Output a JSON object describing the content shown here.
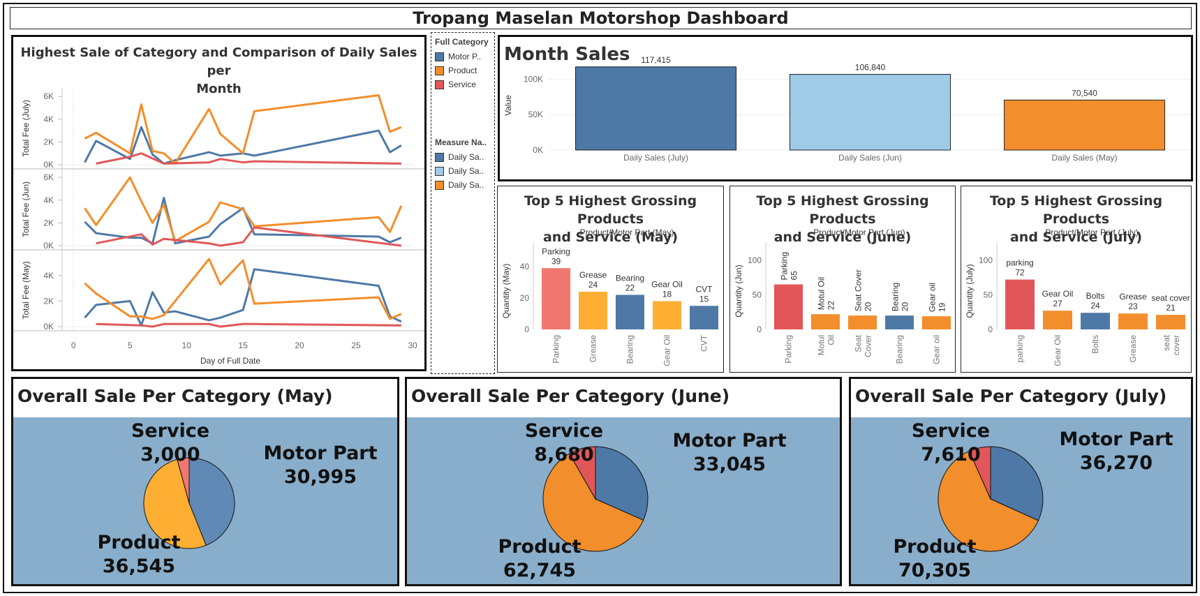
{
  "dashboard_title": "Tropang Maselan Motorshop Dashboard",
  "colors": {
    "motor_part": "#4e79a7",
    "product": "#f28e2b",
    "service": "#e15759",
    "jul": "#4e79a7",
    "jun": "#a0cbe8",
    "may": "#f28e2b",
    "pie_bg": "#89aecb",
    "pie_may_product": "#ffae34",
    "pie_may_motor": "#6189b5",
    "pie_may_service": "#f0776f"
  },
  "legend": {
    "category_title": "Full Category",
    "categories": [
      {
        "label": "Motor P..",
        "color": "#4e79a7"
      },
      {
        "label": "Product",
        "color": "#f28e2b"
      },
      {
        "label": "Service",
        "color": "#e15759"
      }
    ],
    "measure_title": "Measure Na..",
    "measures": [
      {
        "label": "Daily Sa..",
        "color": "#4e79a7"
      },
      {
        "label": "Daily Sa..",
        "color": "#a0cbe8"
      },
      {
        "label": "Daily Sa..",
        "color": "#f28e2b"
      }
    ]
  },
  "line_panel": {
    "title_line1": "Highest Sale of Category and Comparison of Daily Sales per",
    "title_line2": "Month",
    "xlabel": "Day of Full Date"
  },
  "month_panel": {
    "title": "Month Sales"
  },
  "top5_titles": {
    "may": [
      "Top 5 Highest Grossing Products",
      "and Service (May)"
    ],
    "jun": [
      "Top 5 Highest Grossing Products",
      "and Service (June)"
    ],
    "jul": [
      "Top 5 Highest Grossing Products",
      "and Service (July)"
    ]
  },
  "pie_titles": {
    "may": "Overall Sale Per Category (May)",
    "jun": "Overall Sale Per Category (June)",
    "jul": "Overall Sale Per Category (July)"
  },
  "chart_data": [
    {
      "type": "line",
      "title": "Highest Sale of Category and Comparison of Daily Sales per Month",
      "xlabel": "Day of Full Date",
      "xlim": [
        -1,
        30
      ],
      "xticks": [
        0,
        5,
        10,
        15,
        20,
        25,
        30
      ],
      "panes": [
        {
          "ylabel": "Total Fee (July)",
          "ylim": [
            0,
            6500
          ],
          "yticks": [
            0,
            2000,
            4000,
            6000
          ],
          "ytick_labels": [
            "0K",
            "2K",
            "4K",
            "6K"
          ],
          "series": [
            {
              "name": "Motor Part",
              "points": [
                [
                  1,
                  200
                ],
                [
                  2,
                  2100
                ],
                [
                  5,
                  500
                ],
                [
                  6,
                  3300
                ],
                [
                  7,
                  900
                ],
                [
                  8,
                  100
                ],
                [
                  9,
                  400
                ],
                [
                  12,
                  1100
                ],
                [
                  13,
                  800
                ],
                [
                  15,
                  1000
                ],
                [
                  16,
                  800
                ],
                [
                  27,
                  3000
                ],
                [
                  28,
                  1100
                ],
                [
                  29,
                  1700
                ]
              ]
            },
            {
              "name": "Product",
              "points": [
                [
                  1,
                  2300
                ],
                [
                  2,
                  2800
                ],
                [
                  5,
                  1000
                ],
                [
                  6,
                  5300
                ],
                [
                  7,
                  1200
                ],
                [
                  8,
                  1000
                ],
                [
                  9,
                  100
                ],
                [
                  12,
                  4900
                ],
                [
                  13,
                  2700
                ],
                [
                  15,
                  1000
                ],
                [
                  16,
                  4700
                ],
                [
                  27,
                  6100
                ],
                [
                  28,
                  2900
                ],
                [
                  29,
                  3300
                ]
              ]
            },
            {
              "name": "Service",
              "points": [
                [
                  2,
                  100
                ],
                [
                  5,
                  700
                ],
                [
                  6,
                  1000
                ],
                [
                  8,
                  100
                ],
                [
                  12,
                  200
                ],
                [
                  13,
                  500
                ],
                [
                  15,
                  200
                ],
                [
                  16,
                  300
                ],
                [
                  29,
                  100
                ]
              ]
            }
          ]
        },
        {
          "ylabel": "Total Fee (Jun)",
          "ylim": [
            0,
            6500
          ],
          "yticks": [
            0,
            2000,
            4000,
            6000
          ],
          "ytick_labels": [
            "0K",
            "2K",
            "4K",
            "6K"
          ],
          "series": [
            {
              "name": "Motor Part",
              "points": [
                [
                  1,
                  2100
                ],
                [
                  2,
                  1100
                ],
                [
                  5,
                  700
                ],
                [
                  6,
                  700
                ],
                [
                  7,
                  200
                ],
                [
                  8,
                  4200
                ],
                [
                  9,
                  200
                ],
                [
                  12,
                  800
                ],
                [
                  13,
                  1900
                ],
                [
                  15,
                  3300
                ],
                [
                  16,
                  1000
                ],
                [
                  27,
                  800
                ],
                [
                  28,
                  300
                ],
                [
                  29,
                  700
                ]
              ]
            },
            {
              "name": "Product",
              "points": [
                [
                  1,
                  3300
                ],
                [
                  2,
                  1800
                ],
                [
                  5,
                  6000
                ],
                [
                  6,
                  3900
                ],
                [
                  7,
                  2000
                ],
                [
                  8,
                  3600
                ],
                [
                  9,
                  400
                ],
                [
                  12,
                  2100
                ],
                [
                  13,
                  3800
                ],
                [
                  15,
                  3200
                ],
                [
                  16,
                  1700
                ],
                [
                  27,
                  2500
                ],
                [
                  28,
                  1200
                ],
                [
                  29,
                  3500
                ]
              ]
            },
            {
              "name": "Service",
              "points": [
                [
                  2,
                  200
                ],
                [
                  6,
                  1000
                ],
                [
                  7,
                  100
                ],
                [
                  8,
                  600
                ],
                [
                  12,
                  200
                ],
                [
                  13,
                  0
                ],
                [
                  15,
                  300
                ],
                [
                  16,
                  1600
                ],
                [
                  29,
                  0
                ]
              ]
            }
          ]
        },
        {
          "ylabel": "Total Fee (May)",
          "ylim": [
            0,
            5800
          ],
          "yticks": [
            0,
            2000,
            4000
          ],
          "ytick_labels": [
            "0K",
            "2K",
            "4K"
          ],
          "series": [
            {
              "name": "Motor Part",
              "points": [
                [
                  1,
                  700
                ],
                [
                  2,
                  1700
                ],
                [
                  5,
                  2000
                ],
                [
                  6,
                  100
                ],
                [
                  7,
                  2700
                ],
                [
                  8,
                  1100
                ],
                [
                  9,
                  1200
                ],
                [
                  12,
                  500
                ],
                [
                  13,
                  700
                ],
                [
                  15,
                  1300
                ],
                [
                  16,
                  4500
                ],
                [
                  27,
                  3200
                ],
                [
                  28,
                  800
                ],
                [
                  29,
                  400
                ]
              ]
            },
            {
              "name": "Product",
              "points": [
                [
                  1,
                  3400
                ],
                [
                  2,
                  2600
                ],
                [
                  5,
                  800
                ],
                [
                  6,
                  800
                ],
                [
                  7,
                  600
                ],
                [
                  8,
                  900
                ],
                [
                  12,
                  5300
                ],
                [
                  13,
                  3300
                ],
                [
                  15,
                  5200
                ],
                [
                  16,
                  1800
                ],
                [
                  27,
                  2300
                ],
                [
                  28,
                  600
                ],
                [
                  29,
                  1000
                ]
              ]
            },
            {
              "name": "Service",
              "points": [
                [
                  2,
                  200
                ],
                [
                  6,
                  100
                ],
                [
                  7,
                  0
                ],
                [
                  8,
                  200
                ],
                [
                  12,
                  200
                ],
                [
                  13,
                  0
                ],
                [
                  15,
                  200
                ],
                [
                  16,
                  200
                ],
                [
                  29,
                  100
                ]
              ]
            }
          ]
        }
      ]
    },
    {
      "type": "bar",
      "title": "Month Sales",
      "ylabel": "Value",
      "ylim": [
        0,
        130000
      ],
      "yticks": [
        0,
        50000,
        100000
      ],
      "ytick_labels": [
        "0K",
        "50K",
        "100K"
      ],
      "categories": [
        "Daily Sales (July)",
        "Daily Sales (Jun)",
        "Daily Sales (May)"
      ],
      "values": [
        117415,
        106840,
        70540
      ],
      "labels": [
        "117,415",
        "106,840",
        "70,540"
      ]
    },
    {
      "type": "bar",
      "id": "may",
      "subtitle": "Product/Motor Part (May)",
      "ylabel": "Quantity (May)",
      "ylim": [
        0,
        52
      ],
      "yticks": [
        0,
        20,
        40
      ],
      "categories": [
        "Parking",
        "Grease",
        "Bearing",
        "Gear Oil",
        "CVT"
      ],
      "bar_labels": [
        "Parking",
        "Grease",
        "Bearing",
        "Gear Oil",
        "CVT"
      ],
      "values": [
        39,
        24,
        22,
        18,
        15
      ],
      "colors": [
        "#f0776f",
        "#ffae34",
        "#4e79a7",
        "#ffae34",
        "#4e79a7"
      ]
    },
    {
      "type": "bar",
      "id": "jun",
      "subtitle": "Product/Motor Part (Jun)",
      "ylabel": "Quantity (Jun)",
      "ylim": [
        0,
        118
      ],
      "yticks": [
        0,
        50,
        100
      ],
      "categories": [
        "Parking",
        "Motul Oil",
        "Seat Cover",
        "Bearing",
        "Gear oil"
      ],
      "bar_labels": [
        "Parking",
        "Motul Oil",
        "Seat Cover",
        "Bearing",
        "Gear oil"
      ],
      "values": [
        65,
        22,
        20,
        20,
        19
      ],
      "colors": [
        "#e15759",
        "#f28e2b",
        "#f28e2b",
        "#4e79a7",
        "#f28e2b"
      ]
    },
    {
      "type": "bar",
      "id": "jul",
      "subtitle": "Product/Motor Part (July)",
      "ylabel": "Quantity (July)",
      "ylim": [
        0,
        118
      ],
      "yticks": [
        0,
        50,
        100
      ],
      "categories": [
        "parking",
        "Gear Oil",
        "Bolts",
        "Grease",
        "seat cover"
      ],
      "bar_labels": [
        "parking",
        "Gear Oil",
        "Bolts",
        "Grease",
        "seat cover"
      ],
      "values": [
        72,
        27,
        24,
        23,
        21
      ],
      "colors": [
        "#e15759",
        "#f28e2b",
        "#4e79a7",
        "#f28e2b",
        "#f28e2b"
      ]
    },
    {
      "type": "pie",
      "id": "may",
      "title": "Overall Sale Per Category (May)",
      "slices": [
        {
          "name": "Motor Part",
          "value": 30995,
          "label": "30,995",
          "color": "#6189b5"
        },
        {
          "name": "Product",
          "value": 36545,
          "label": "36,545",
          "color": "#ffae34"
        },
        {
          "name": "Service",
          "value": 3000,
          "label": "3,000",
          "color": "#f0776f"
        }
      ]
    },
    {
      "type": "pie",
      "id": "jun",
      "title": "Overall Sale Per Category (June)",
      "slices": [
        {
          "name": "Motor Part",
          "value": 33045,
          "label": "33,045",
          "color": "#4e79a7"
        },
        {
          "name": "Product",
          "value": 62745,
          "label": "62,745",
          "color": "#f28e2b"
        },
        {
          "name": "Service",
          "value": 8680,
          "label": "8,680",
          "color": "#e15759"
        }
      ]
    },
    {
      "type": "pie",
      "id": "jul",
      "title": "Overall Sale Per Category (July)",
      "slices": [
        {
          "name": "Motor Part",
          "value": 36270,
          "label": "36,270",
          "color": "#4e79a7"
        },
        {
          "name": "Product",
          "value": 70305,
          "label": "70,305",
          "color": "#f28e2b"
        },
        {
          "name": "Service",
          "value": 7610,
          "label": "7,610",
          "color": "#e15759"
        }
      ]
    }
  ]
}
